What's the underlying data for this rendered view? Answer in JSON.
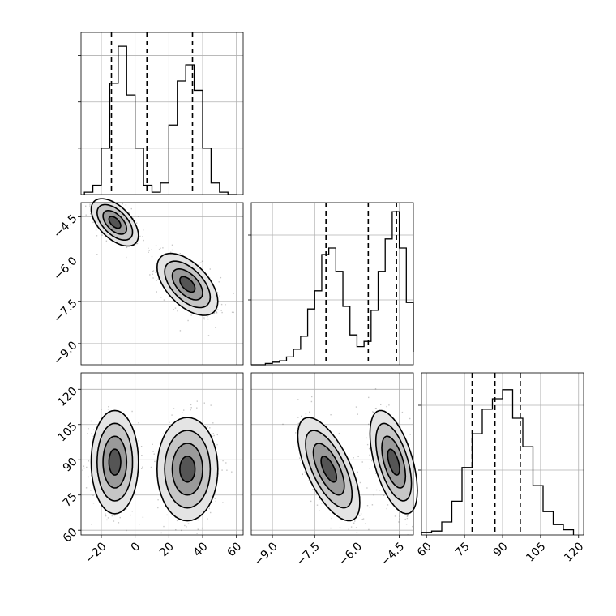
{
  "chart_data": {
    "type": "corner",
    "parameters": 3,
    "grid": true,
    "quantile_lines": "dashed",
    "histograms": [
      {
        "parameter": 0,
        "bin_edges": [
          -30,
          -25,
          -20,
          -15,
          -10,
          -5,
          0,
          5,
          10,
          15,
          20,
          25,
          30,
          35,
          40,
          45,
          50,
          55,
          60
        ],
        "counts": [
          1,
          4,
          20,
          48,
          64,
          43,
          20,
          4,
          1,
          5,
          30,
          49,
          56,
          45,
          20,
          5,
          1,
          0
        ],
        "ylim": [
          0,
          70
        ],
        "yticks": [
          20,
          40,
          60
        ],
        "quantiles": [
          -14,
          7,
          34
        ]
      },
      {
        "parameter": 1,
        "bin_edges": [
          -9.75,
          -9.5,
          -9.25,
          -9.0,
          -8.75,
          -8.5,
          -8.25,
          -8.0,
          -7.75,
          -7.5,
          -7.25,
          -7.0,
          -6.75,
          -6.5,
          -6.25,
          -6.0,
          -5.75,
          -5.5,
          -5.25,
          -5.0,
          -4.75,
          -4.5,
          -4.25,
          -4.0
        ],
        "counts": [
          0,
          0,
          1,
          2,
          3,
          6,
          12,
          22,
          43,
          57,
          85,
          90,
          72,
          45,
          23,
          14,
          18,
          42,
          72,
          97,
          118,
          90,
          48,
          10
        ],
        "ylim": [
          0,
          125
        ],
        "yticks": [
          50,
          100
        ],
        "quantiles": [
          -7.1,
          -5.6,
          -4.6
        ]
      },
      {
        "parameter": 2,
        "bin_edges": [
          58,
          62,
          66,
          70,
          74,
          78,
          82,
          86,
          90,
          94,
          98,
          102,
          106,
          110,
          114,
          118
        ],
        "counts": [
          2,
          3,
          10,
          26,
          52,
          78,
          97,
          105,
          112,
          90,
          68,
          38,
          18,
          8,
          4
        ],
        "ylim": [
          0,
          125
        ],
        "yticks": [
          50,
          100
        ],
        "quantiles": [
          78,
          87,
          97
        ]
      }
    ],
    "scatter_panels": [
      {
        "x_param": 0,
        "y_param": 1,
        "modes": [
          {
            "mean": [
              -12,
              -4.7
            ],
            "sd": [
              7,
              0.42
            ],
            "corr": -0.55
          },
          {
            "mean": [
              31,
              -6.9
            ],
            "sd": [
              9,
              0.55
            ],
            "corr": -0.55
          }
        ]
      },
      {
        "x_param": 0,
        "y_param": 2,
        "modes": [
          {
            "mean": [
              -12,
              89
            ],
            "sd": [
              7,
              11
            ],
            "corr": 0
          },
          {
            "mean": [
              31,
              86
            ],
            "sd": [
              9,
              11
            ],
            "corr": 0
          }
        ]
      },
      {
        "x_param": 1,
        "y_param": 2,
        "modes": [
          {
            "mean": [
              -7,
              86
            ],
            "sd": [
              0.55,
              11
            ],
            "corr": -0.65
          },
          {
            "mean": [
              -4.7,
              89
            ],
            "sd": [
              0.42,
              11
            ],
            "corr": -0.55
          }
        ]
      }
    ],
    "x_axes": [
      {
        "parameter": 0,
        "xlim": [
          -32,
          64
        ],
        "ticks": [
          -20,
          0,
          20,
          40,
          60
        ],
        "tick_labels": [
          "−20",
          "0",
          "20",
          "40",
          "60"
        ]
      },
      {
        "parameter": 1,
        "xlim": [
          -9.75,
          -4.0
        ],
        "ticks": [
          -9.0,
          -7.5,
          -6.0,
          -4.5
        ],
        "tick_labels": [
          "−9.0",
          "−7.5",
          "−6.0",
          "−4.5"
        ]
      },
      {
        "parameter": 2,
        "xlim": [
          58,
          122
        ],
        "ticks": [
          60,
          75,
          90,
          105,
          120
        ],
        "tick_labels": [
          "60",
          "75",
          "90",
          "105",
          "120"
        ]
      }
    ],
    "y_axes": [
      {
        "parameter": 1,
        "ylim": [
          -9.75,
          -4.0
        ],
        "ticks": [
          -9.0,
          -7.5,
          -6.0,
          -4.5
        ],
        "tick_labels": [
          "−9.0",
          "−7.5",
          "−6.0",
          "−4.5"
        ]
      },
      {
        "parameter": 2,
        "ylim": [
          58,
          127
        ],
        "ticks": [
          60,
          75,
          90,
          105,
          120
        ],
        "tick_labels": [
          "60",
          "75",
          "90",
          "105",
          "120"
        ]
      }
    ]
  }
}
